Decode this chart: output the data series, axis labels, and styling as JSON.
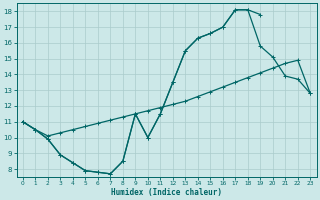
{
  "title": "",
  "xlabel": "Humidex (Indice chaleur)",
  "bg_color": "#cce8e8",
  "grid_color": "#aacccc",
  "line_color": "#006666",
  "xlim": [
    -0.5,
    23.5
  ],
  "ylim": [
    7.5,
    18.5
  ],
  "yticks": [
    8,
    9,
    10,
    11,
    12,
    13,
    14,
    15,
    16,
    17,
    18
  ],
  "xticks": [
    0,
    1,
    2,
    3,
    4,
    5,
    6,
    7,
    8,
    9,
    10,
    11,
    12,
    13,
    14,
    15,
    16,
    17,
    18,
    19,
    20,
    21,
    22,
    23
  ],
  "line1_x": [
    0,
    1,
    2,
    3,
    4,
    5,
    6,
    7,
    8,
    9,
    10,
    11,
    12,
    13,
    14,
    15,
    16,
    17,
    18,
    19
  ],
  "line1_y": [
    11,
    10.5,
    9.9,
    8.9,
    8.4,
    7.9,
    7.8,
    7.7,
    8.5,
    11.5,
    10.0,
    11.5,
    13.5,
    15.5,
    16.3,
    16.6,
    17.0,
    18.1,
    18.1,
    17.8
  ],
  "line2_x": [
    0,
    1,
    2,
    3,
    4,
    5,
    6,
    7,
    8,
    9,
    10,
    11,
    12,
    13,
    14,
    15,
    16,
    17,
    18,
    19,
    20,
    21,
    22,
    23
  ],
  "line2_y": [
    11,
    10.5,
    9.9,
    8.9,
    8.4,
    7.9,
    7.8,
    7.7,
    8.5,
    11.5,
    10.0,
    11.5,
    13.5,
    15.5,
    16.3,
    16.6,
    17.0,
    18.1,
    18.1,
    15.8,
    15.1,
    13.9,
    13.7,
    12.8
  ],
  "line3_x": [
    0,
    1,
    2,
    3,
    4,
    5,
    6,
    7,
    8,
    9,
    10,
    11,
    12,
    13,
    14,
    15,
    16,
    17,
    18,
    19,
    20,
    21,
    22,
    23
  ],
  "line3_y": [
    11,
    10.5,
    10.1,
    10.3,
    10.5,
    10.7,
    10.9,
    11.1,
    11.3,
    11.5,
    11.7,
    11.9,
    12.1,
    12.3,
    12.6,
    12.9,
    13.2,
    13.5,
    13.8,
    14.1,
    14.4,
    14.7,
    14.9,
    12.8
  ],
  "marker": "+",
  "markersize": 3,
  "linewidth": 0.9
}
